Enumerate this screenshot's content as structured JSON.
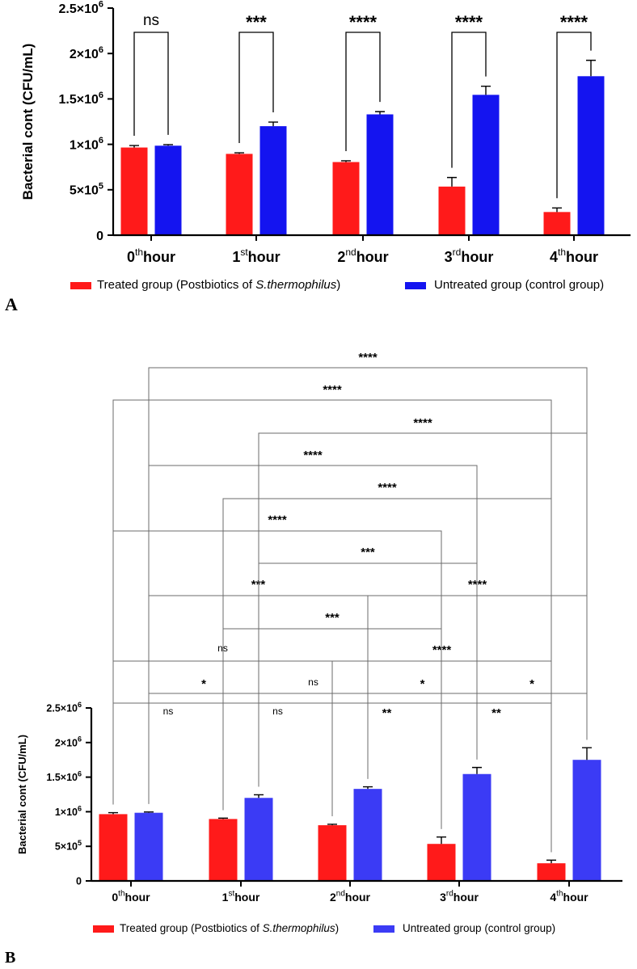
{
  "chart_data": [
    {
      "type": "bar",
      "panel": "A",
      "ylabel": "Bacterial cont (CFU/mL)",
      "xlabel": "",
      "ylim": [
        0,
        2500000
      ],
      "categories": [
        {
          "base": "0",
          "sup": "th",
          "suffix": "hour"
        },
        {
          "base": "1",
          "sup": "st",
          "suffix": "hour"
        },
        {
          "base": "2",
          "sup": "nd",
          "suffix": "hour"
        },
        {
          "base": "3",
          "sup": "rd",
          "suffix": "hour"
        },
        {
          "base": "4",
          "sup": "th",
          "suffix": "hour"
        }
      ],
      "yticks": [
        {
          "value": 0,
          "label": "0",
          "sup": ""
        },
        {
          "value": 500000,
          "label": "5×10",
          "sup": "5"
        },
        {
          "value": 1000000,
          "label": "1×10",
          "sup": "6"
        },
        {
          "value": 1500000,
          "label": "1.5×10",
          "sup": "6"
        },
        {
          "value": 2000000,
          "label": "2×10",
          "sup": "6"
        },
        {
          "value": 2500000,
          "label": "2.5×10",
          "sup": "6"
        }
      ],
      "series": [
        {
          "name": "Treated group (Postbiotics of S.thermophilus)",
          "color": "#ff1a1a",
          "values": [
            965000,
            895000,
            805000,
            535000,
            255000
          ],
          "errors": [
            22000,
            12000,
            14000,
            100000,
            45000
          ]
        },
        {
          "name": "Untreated group (control group)",
          "color": "#1414f0",
          "values": [
            985000,
            1200000,
            1330000,
            1545000,
            1750000
          ],
          "errors": [
            12000,
            45000,
            30000,
            95000,
            175000
          ]
        }
      ],
      "legend": {
        "treated_text": "Treated group (Postbiotics of ",
        "treated_italic": "S.thermophilus",
        "treated_close": ")",
        "untreated_text": "Untreated group (control group)"
      },
      "comparisons": [
        {
          "from": [
            0,
            0
          ],
          "to": [
            0,
            1
          ],
          "label": "ns"
        },
        {
          "from": [
            1,
            0
          ],
          "to": [
            1,
            1
          ],
          "label": "***"
        },
        {
          "from": [
            2,
            0
          ],
          "to": [
            2,
            1
          ],
          "label": "****"
        },
        {
          "from": [
            3,
            0
          ],
          "to": [
            3,
            1
          ],
          "label": "****"
        },
        {
          "from": [
            4,
            0
          ],
          "to": [
            4,
            1
          ],
          "label": "****"
        }
      ]
    },
    {
      "type": "bar",
      "panel": "B",
      "ylabel": "Bacterial cont (CFU/mL)",
      "xlabel": "",
      "ylim": [
        0,
        2500000
      ],
      "categories": [
        {
          "base": "0",
          "sup": "th",
          "suffix": "hour"
        },
        {
          "base": "1",
          "sup": "st",
          "suffix": "hour"
        },
        {
          "base": "2",
          "sup": "nd",
          "suffix": "hour"
        },
        {
          "base": "3",
          "sup": "rd",
          "suffix": "hour"
        },
        {
          "base": "4",
          "sup": "th",
          "suffix": "hour"
        }
      ],
      "yticks": [
        {
          "value": 0,
          "label": "0",
          "sup": ""
        },
        {
          "value": 500000,
          "label": "5×10",
          "sup": "5"
        },
        {
          "value": 1000000,
          "label": "1×10",
          "sup": "6"
        },
        {
          "value": 1500000,
          "label": "1.5×10",
          "sup": "6"
        },
        {
          "value": 2000000,
          "label": "2×10",
          "sup": "6"
        },
        {
          "value": 2500000,
          "label": "2.5×10",
          "sup": "6"
        }
      ],
      "series": [
        {
          "name": "Treated group (Postbiotics of S.thermophilus)",
          "color": "#ff1a1a",
          "values": [
            965000,
            895000,
            805000,
            535000,
            255000
          ],
          "errors": [
            22000,
            12000,
            14000,
            100000,
            45000
          ]
        },
        {
          "name": "Untreated group (control group)",
          "color": "#3b3bf5",
          "values": [
            985000,
            1200000,
            1330000,
            1545000,
            1750000
          ],
          "errors": [
            12000,
            45000,
            30000,
            95000,
            175000
          ]
        }
      ],
      "legend": {
        "treated_text": "Treated group (Postbiotics of ",
        "treated_italic": "S.thermophilus",
        "treated_close": ")",
        "untreated_text": "Untreated group (control group)"
      },
      "comparisons": [
        {
          "from": [
            0,
            0
          ],
          "to": [
            1,
            0
          ],
          "label": "ns"
        },
        {
          "from": [
            1,
            0
          ],
          "to": [
            2,
            0
          ],
          "label": "ns"
        },
        {
          "from": [
            2,
            0
          ],
          "to": [
            3,
            0
          ],
          "label": "**"
        },
        {
          "from": [
            3,
            0
          ],
          "to": [
            4,
            0
          ],
          "label": "**"
        },
        {
          "from": [
            0,
            1
          ],
          "to": [
            1,
            1
          ],
          "label": "*"
        },
        {
          "from": [
            1,
            1
          ],
          "to": [
            2,
            1
          ],
          "label": "ns"
        },
        {
          "from": [
            2,
            1
          ],
          "to": [
            3,
            1
          ],
          "label": "*"
        },
        {
          "from": [
            3,
            1
          ],
          "to": [
            4,
            1
          ],
          "label": "*"
        },
        {
          "from": [
            0,
            0
          ],
          "to": [
            2,
            0
          ],
          "label": "ns"
        },
        {
          "from": [
            2,
            0
          ],
          "to": [
            4,
            0
          ],
          "label": "****"
        },
        {
          "from": [
            1,
            0
          ],
          "to": [
            3,
            0
          ],
          "label": "***"
        },
        {
          "from": [
            0,
            1
          ],
          "to": [
            2,
            1
          ],
          "label": "***"
        },
        {
          "from": [
            2,
            1
          ],
          "to": [
            4,
            1
          ],
          "label": "****"
        },
        {
          "from": [
            1,
            1
          ],
          "to": [
            3,
            1
          ],
          "label": "***"
        },
        {
          "from": [
            0,
            0
          ],
          "to": [
            3,
            0
          ],
          "label": "****"
        },
        {
          "from": [
            1,
            0
          ],
          "to": [
            4,
            0
          ],
          "label": "****"
        },
        {
          "from": [
            0,
            1
          ],
          "to": [
            3,
            1
          ],
          "label": "****"
        },
        {
          "from": [
            1,
            1
          ],
          "to": [
            4,
            1
          ],
          "label": "****"
        },
        {
          "from": [
            0,
            0
          ],
          "to": [
            4,
            0
          ],
          "label": "****"
        },
        {
          "from": [
            0,
            1
          ],
          "to": [
            4,
            1
          ],
          "label": "****"
        }
      ]
    }
  ]
}
